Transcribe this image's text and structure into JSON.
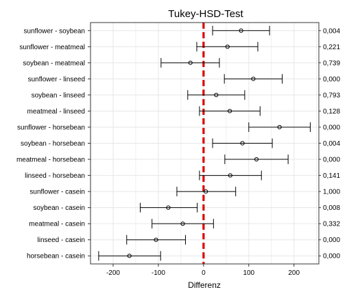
{
  "chart_data": {
    "type": "scatter",
    "title": "Tukey-HSD-Test",
    "xlabel": "Differenz",
    "xlim": [
      -250,
      255
    ],
    "xticks": [
      -200,
      -100,
      0,
      100,
      200
    ],
    "reference_line": 0,
    "grid": true,
    "comparisons": [
      {
        "label": "sunflower - soybean",
        "estimate": 83,
        "lower": 20,
        "upper": 146,
        "p": "0,004"
      },
      {
        "label": "sunflower - meatmeal",
        "estimate": 53,
        "lower": -15,
        "upper": 120,
        "p": "0,221"
      },
      {
        "label": "soybean - meatmeal",
        "estimate": -29,
        "lower": -94,
        "upper": 35,
        "p": "0,739"
      },
      {
        "label": "sunflower - linseed",
        "estimate": 110,
        "lower": 46,
        "upper": 174,
        "p": "0,000"
      },
      {
        "label": "soybean - linseed",
        "estimate": 28,
        "lower": -35,
        "upper": 91,
        "p": "0,793"
      },
      {
        "label": "meatmeal - linseed",
        "estimate": 58,
        "lower": -9,
        "upper": 125,
        "p": "0,128"
      },
      {
        "label": "sunflower - horsebean",
        "estimate": 168,
        "lower": 100,
        "upper": 236,
        "p": "0,000"
      },
      {
        "label": "soybean - horsebean",
        "estimate": 86,
        "lower": 20,
        "upper": 152,
        "p": "0,004"
      },
      {
        "label": "meatmeal - horsebean",
        "estimate": 117,
        "lower": 47,
        "upper": 187,
        "p": "0,000"
      },
      {
        "label": "linseed - horsebean",
        "estimate": 59,
        "lower": -9,
        "upper": 128,
        "p": "0,141"
      },
      {
        "label": "sunflower - casein",
        "estimate": 5,
        "lower": -59,
        "upper": 71,
        "p": "1,000"
      },
      {
        "label": "soybean - casein",
        "estimate": -78,
        "lower": -140,
        "upper": -14,
        "p": "0,008"
      },
      {
        "label": "meatmeal - casein",
        "estimate": -46,
        "lower": -114,
        "upper": 22,
        "p": "0,332"
      },
      {
        "label": "linseed - casein",
        "estimate": -105,
        "lower": -170,
        "upper": -40,
        "p": "0,000"
      },
      {
        "label": "horsebean - casein",
        "estimate": -164,
        "lower": -232,
        "upper": -95,
        "p": "0,000"
      }
    ],
    "colors": {
      "reference_line": "#dd0000",
      "interval": "#000000",
      "grid": "#e6e6e6",
      "panel_border": "#333333"
    }
  }
}
